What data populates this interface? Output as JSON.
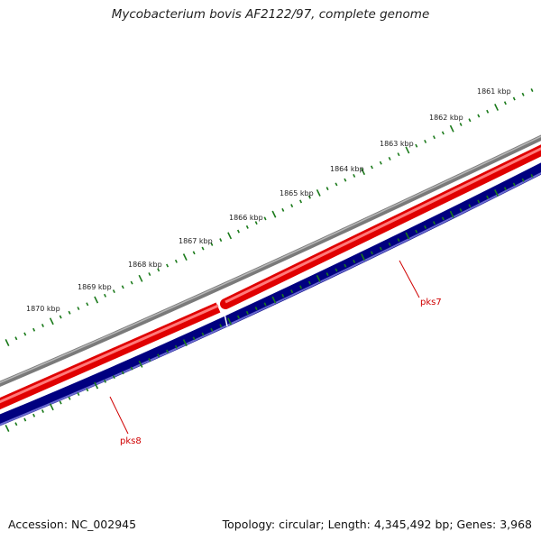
{
  "title": "Mycobacterium bovis AF2122/97, complete genome",
  "accession": "Accession: NC_002945",
  "summary": "Topology: circular; Length: 4,345,492 bp; Genes: 3,968",
  "kbp_labels": [
    "1861 kbp",
    "1862 kbp",
    "1863 kbp",
    "1864 kbp",
    "1865 kbp",
    "1866 kbp",
    "1867 kbp",
    "1868 kbp",
    "1869 kbp",
    "1870 kbp"
  ],
  "genes": [
    {
      "name": "pks7"
    },
    {
      "name": "pks8"
    }
  ],
  "colors": {
    "backbone": "#808080",
    "forward_strand": "#ff0000",
    "reverse_strand": "#000080",
    "tick": "#1a7a1a",
    "gene_label": "#d00000"
  }
}
